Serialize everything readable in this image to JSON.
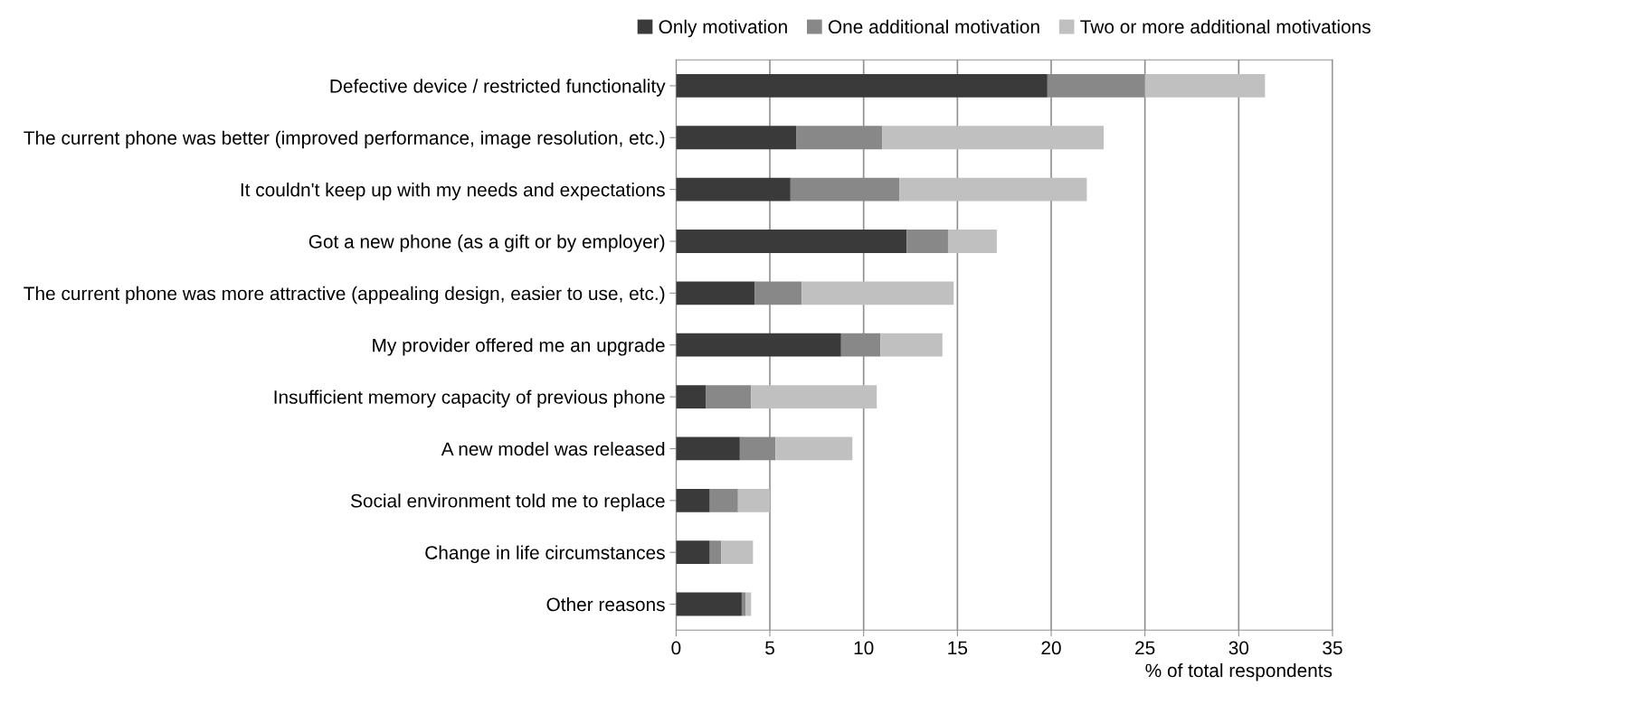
{
  "chart_data": {
    "type": "bar",
    "orientation": "horizontal",
    "stacked": true,
    "xlabel": "% of total respondents",
    "categories": [
      "Defective device / restricted functionality",
      "The current phone was better (improved performance, image resolution, etc.)",
      "It couldn't keep up with my needs and expectations",
      "Got a new phone (as a gift or by employer)",
      "The current phone was more attractive (appealing design, easier to use, etc.)",
      "My provider offered me an upgrade",
      "Insufficient memory capacity of previous phone",
      "A new model was released",
      "Social environment told me to replace",
      "Change in life circumstances",
      "Other reasons"
    ],
    "series": [
      {
        "name": "Only motivation",
        "color": "#3a3a3a",
        "values": [
          19.8,
          6.4,
          6.1,
          12.3,
          4.2,
          8.8,
          1.6,
          3.4,
          1.8,
          1.8,
          3.5
        ]
      },
      {
        "name": "One additional motivation",
        "color": "#888888",
        "values": [
          5.2,
          4.6,
          5.8,
          2.2,
          2.5,
          2.1,
          2.4,
          1.9,
          1.5,
          0.6,
          0.2
        ]
      },
      {
        "name": "Two or more additional motivations",
        "color": "#c0c0c0",
        "values": [
          6.4,
          11.8,
          10.0,
          2.6,
          8.1,
          3.3,
          6.7,
          4.1,
          1.7,
          1.7,
          0.3
        ]
      }
    ],
    "xlim": [
      0,
      35
    ],
    "xticks": [
      0,
      5,
      10,
      15,
      20,
      25,
      30,
      35
    ],
    "grid": "x",
    "legend": "top"
  }
}
